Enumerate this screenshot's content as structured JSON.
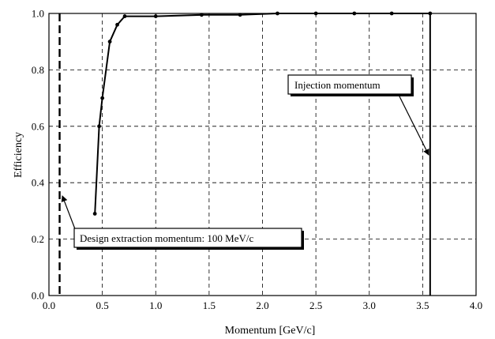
{
  "chart_data": {
    "type": "line",
    "xlabel": "Momentum [GeV/c]",
    "ylabel": "Efficiency",
    "xlim": [
      0.0,
      4.0
    ],
    "ylim": [
      0.0,
      1.0
    ],
    "x_ticks": [
      "0.0",
      "0.5",
      "1.0",
      "1.5",
      "2.0",
      "2.5",
      "3.0",
      "3.5",
      "4.0"
    ],
    "y_ticks": [
      "0.0",
      "0.2",
      "0.4",
      "0.6",
      "0.8",
      "1.0"
    ],
    "grid": true,
    "series": [
      {
        "x": [
          0.43,
          0.47,
          0.5,
          0.57,
          0.64,
          0.71,
          1.0,
          1.43,
          1.79,
          2.14,
          2.5,
          2.86,
          3.21,
          3.57
        ],
        "y": [
          0.29,
          0.6,
          0.7,
          0.9,
          0.96,
          0.99,
          0.99,
          0.995,
          0.995,
          1.0,
          1.0,
          1.0,
          1.0,
          1.0
        ]
      }
    ],
    "reference_lines": [
      {
        "x": 0.1,
        "style": "dashed"
      },
      {
        "x": 3.57,
        "style": "solid"
      }
    ],
    "annotations": [
      {
        "text": "Injection momentum"
      },
      {
        "text": "Design extraction momentum: 100 MeV/c"
      }
    ]
  }
}
